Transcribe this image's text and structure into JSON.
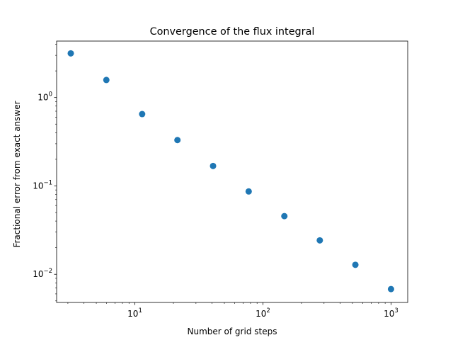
{
  "chart_data": {
    "type": "scatter",
    "title": "Convergence of the flux integral",
    "xlabel": "Number of grid steps",
    "ylabel": "Fractional error from exact answer",
    "xscale": "log",
    "yscale": "log",
    "xlim": [
      2.45,
      1350
    ],
    "ylim": [
      0.0048,
      4.35
    ],
    "grid": false,
    "marker_color": "#1f77b4",
    "x_ticks": [
      {
        "value": 10,
        "base": "10",
        "exp": "1"
      },
      {
        "value": 100,
        "base": "10",
        "exp": "2"
      },
      {
        "value": 1000,
        "base": "10",
        "exp": "3"
      }
    ],
    "y_ticks": [
      {
        "value": 0.01,
        "base": "10",
        "exp": "−2"
      },
      {
        "value": 0.1,
        "base": "10",
        "exp": "−1"
      },
      {
        "value": 1,
        "base": "10",
        "exp": "0"
      }
    ],
    "series": [
      {
        "x": [
          3.16,
          5.99,
          11.4,
          21.5,
          40.8,
          77.4,
          147,
          278,
          527,
          1000
        ],
        "y": [
          3.16,
          1.58,
          0.65,
          0.33,
          0.168,
          0.0865,
          0.0455,
          0.0242,
          0.0128,
          0.0068
        ]
      }
    ]
  }
}
